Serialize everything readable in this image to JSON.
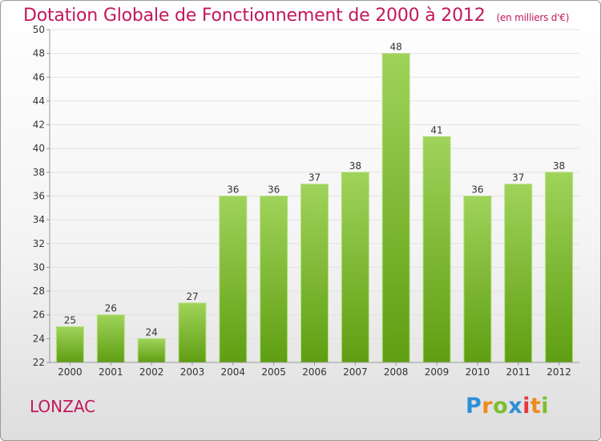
{
  "title": "Dotation Globale de Fonctionnement de 2000 à 2012",
  "subtitle": "(en milliers d'€)",
  "city": "LONZAC",
  "logo": {
    "letters": [
      "P",
      "r",
      "o",
      "x",
      "i",
      "t",
      "i"
    ],
    "colors": [
      "#2f8fd6",
      "#f08a1c",
      "#7cbf2f",
      "#2f8fd6",
      "#e8373c",
      "#f08a1c",
      "#7cbf2f"
    ]
  },
  "colors": {
    "title": "#c2185b",
    "bar_top": "#9fd35a",
    "bar_bottom": "#5f9e12",
    "grid": "#e2e2e2"
  },
  "chart_data": {
    "type": "bar",
    "categories": [
      "2000",
      "2001",
      "2002",
      "2003",
      "2004",
      "2005",
      "2006",
      "2007",
      "2008",
      "2009",
      "2010",
      "2011",
      "2012"
    ],
    "values": [
      25,
      26,
      24,
      27,
      36,
      36,
      37,
      38,
      48,
      41,
      36,
      37,
      38
    ],
    "ylim": [
      22,
      50
    ],
    "yticks": [
      22,
      24,
      26,
      28,
      30,
      32,
      34,
      36,
      38,
      40,
      42,
      44,
      46,
      48,
      50
    ],
    "grid": true,
    "xlabel": "",
    "ylabel": ""
  }
}
